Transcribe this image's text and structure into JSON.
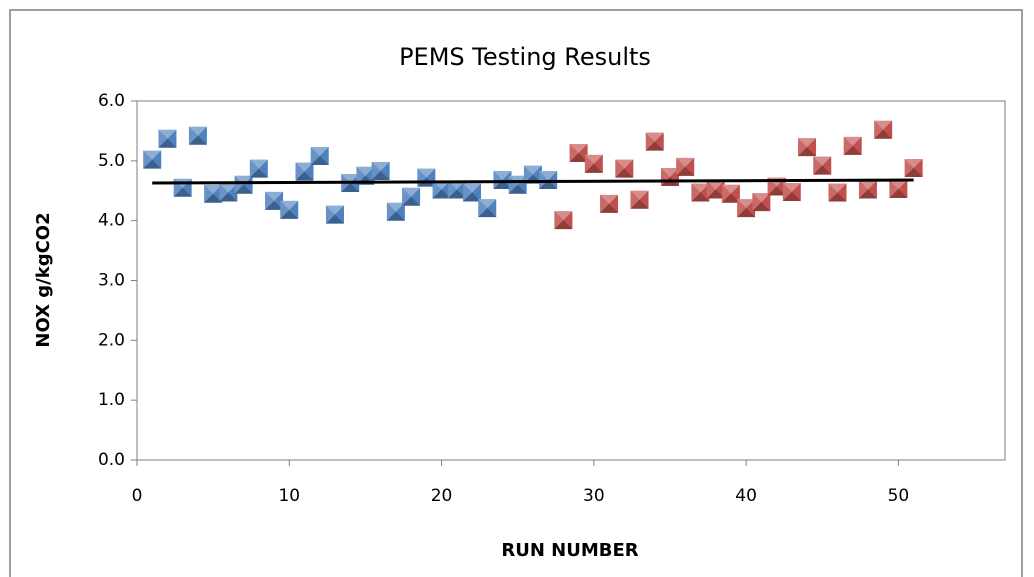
{
  "chart_data": {
    "type": "scatter",
    "title": "PEMS Testing Results",
    "x_label": "RUN NUMBER",
    "y_label": "NOX g/kgCO2",
    "xlim": [
      0,
      57
    ],
    "xticks": [
      0,
      10,
      20,
      30,
      40,
      50
    ],
    "ylim": [
      0,
      6
    ],
    "yticks": [
      {
        "value": 0,
        "label": "0.0"
      },
      {
        "value": 1,
        "label": "1.0"
      },
      {
        "value": 2,
        "label": "2.0"
      },
      {
        "value": 3,
        "label": "3.0"
      },
      {
        "value": 4,
        "label": "4.0"
      },
      {
        "value": 5,
        "label": "5.0"
      },
      {
        "value": 6,
        "label": "6.0"
      }
    ],
    "series": [
      {
        "color": "#4f81bd",
        "x": [
          1,
          2,
          3,
          4,
          5,
          6,
          7,
          8,
          9,
          10,
          11,
          12,
          13,
          14,
          15,
          16,
          17,
          18,
          19,
          20,
          21,
          22,
          23,
          24,
          25,
          26,
          27
        ],
        "values": [
          5.02,
          5.37,
          4.55,
          5.42,
          4.45,
          4.47,
          4.6,
          4.87,
          4.33,
          4.18,
          4.82,
          5.08,
          4.1,
          4.63,
          4.75,
          4.83,
          4.15,
          4.4,
          4.72,
          4.52,
          4.52,
          4.47,
          4.21,
          4.68,
          4.6,
          4.77,
          4.68
        ]
      },
      {
        "color": "#c0504d",
        "x": [
          28,
          29,
          30,
          31,
          32,
          33,
          34,
          35,
          36,
          37,
          38,
          39,
          40,
          41,
          42,
          43,
          44,
          45,
          46,
          47,
          48,
          49,
          50,
          51
        ],
        "values": [
          4.01,
          5.13,
          4.95,
          4.28,
          4.87,
          4.35,
          5.32,
          4.73,
          4.9,
          4.47,
          4.52,
          4.45,
          4.21,
          4.31,
          4.57,
          4.48,
          5.23,
          4.92,
          4.47,
          5.25,
          4.52,
          5.52,
          4.53,
          4.88
        ]
      }
    ],
    "trendline": {
      "color": "#000000",
      "x": [
        1,
        51
      ],
      "values": [
        4.63,
        4.68
      ]
    }
  }
}
